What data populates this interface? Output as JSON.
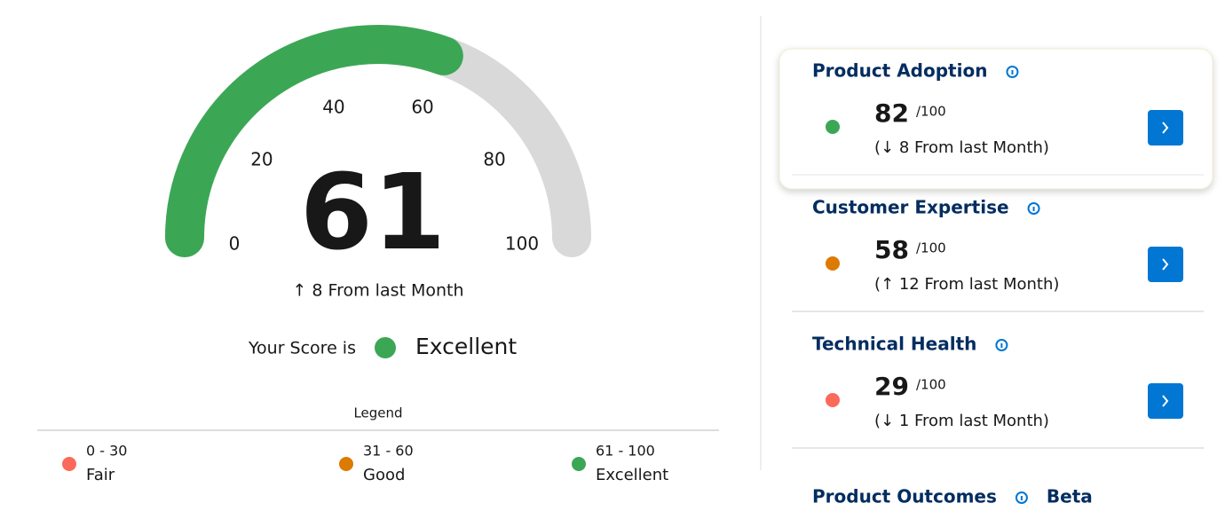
{
  "gauge": {
    "value": 61,
    "ticks": [
      0,
      20,
      40,
      60,
      80,
      100
    ],
    "color": "#3ba755",
    "track_color": "#d9d9d9",
    "change": "↑ 8 From last Month"
  },
  "status": {
    "prefix": "Your Score is",
    "label": "Excellent",
    "color": "#3ba755"
  },
  "legend": {
    "title": "Legend",
    "items": [
      {
        "range": "0 - 30",
        "label": "Fair",
        "color": "#fa6a5a"
      },
      {
        "range": "31 - 60",
        "label": "Good",
        "color": "#dd7a01"
      },
      {
        "range": "61 - 100",
        "label": "Excellent",
        "color": "#3ba755"
      }
    ]
  },
  "cards": [
    {
      "title": "Product Adoption",
      "score": 82,
      "max": "/100",
      "change": "(↓ 8 From last Month)",
      "color": "#3ba755"
    },
    {
      "title": "Customer Expertise",
      "score": 58,
      "max": "/100",
      "change": "(↑ 12 From last Month)",
      "color": "#dd7a01"
    },
    {
      "title": "Technical Health",
      "score": 29,
      "max": "/100",
      "change": "(↓ 1 From last Month)",
      "color": "#fa6a5a"
    }
  ],
  "outcomes": {
    "title": "Product Outcomes",
    "badge": "Beta"
  }
}
